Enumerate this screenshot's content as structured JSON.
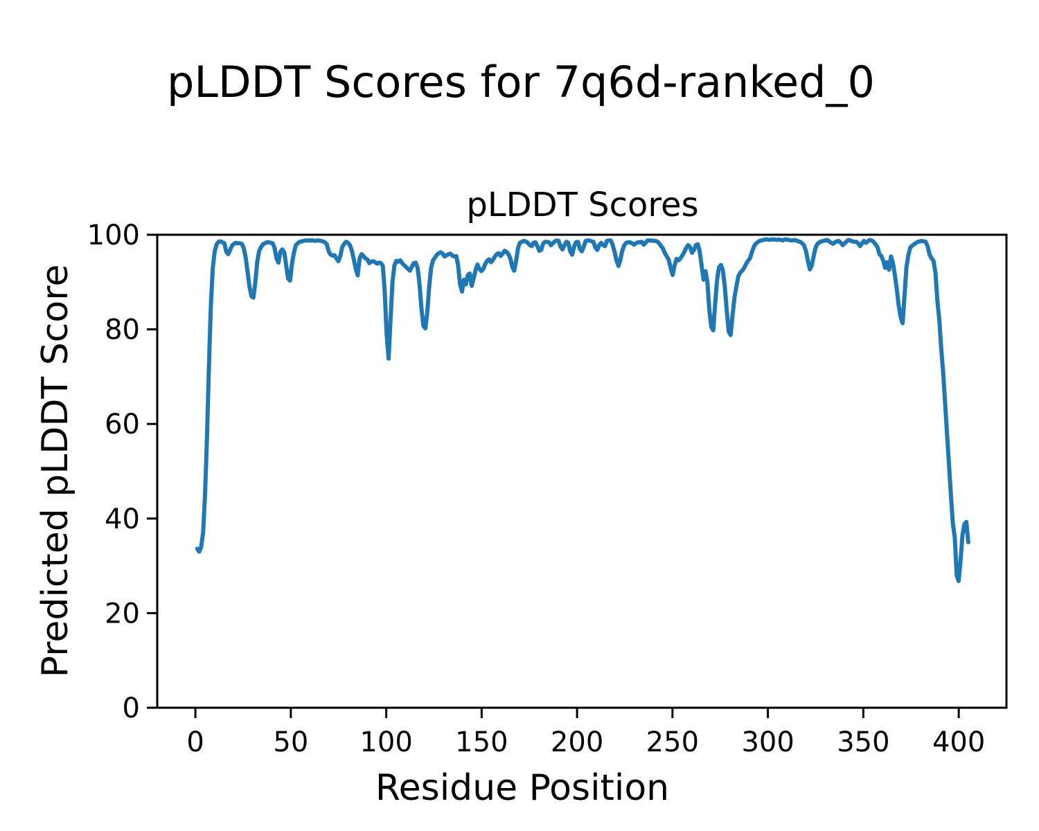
{
  "figure": {
    "suptitle": "pLDDT Scores for 7q6d-ranked_0",
    "background": "#ffffff"
  },
  "chart_data": {
    "type": "line",
    "title": "pLDDT Scores",
    "xlabel": "Residue Position",
    "ylabel": "Predicted pLDDT Score",
    "x_ticks": [
      0,
      50,
      100,
      150,
      200,
      250,
      300,
      350,
      400
    ],
    "y_ticks": [
      0,
      20,
      40,
      60,
      80,
      100
    ],
    "xlim": [
      -20,
      425
    ],
    "ylim": [
      0,
      100
    ],
    "grid": false,
    "legend": null,
    "line_color": "#1f77b4",
    "line_width": 6,
    "axis_color": "#000000",
    "series": [
      {
        "name": "pLDDT",
        "x_start": 1,
        "x_end": 405,
        "y": [
          33.6,
          33.0,
          34.0,
          37.0,
          45.0,
          57.0,
          72.0,
          85.0,
          93.0,
          96.5,
          98.0,
          98.5,
          98.6,
          98.4,
          98.2,
          96.4,
          95.9,
          96.8,
          97.7,
          98.1,
          98.3,
          98.2,
          98.2,
          98.1,
          97.2,
          95.3,
          92.2,
          89.0,
          87.0,
          86.7,
          89.8,
          94.2,
          96.6,
          97.4,
          98.0,
          98.2,
          98.4,
          98.4,
          98.3,
          98.2,
          97.2,
          95.0,
          94.1,
          96.4,
          96.9,
          96.3,
          93.5,
          90.7,
          90.3,
          93.8,
          96.2,
          97.8,
          98.2,
          98.5,
          98.6,
          98.7,
          98.8,
          98.8,
          98.8,
          98.8,
          98.8,
          98.7,
          98.8,
          98.8,
          98.7,
          98.6,
          98.4,
          98.0,
          96.5,
          95.8,
          95.6,
          95.7,
          95.0,
          94.4,
          95.5,
          97.4,
          98.1,
          98.5,
          98.3,
          97.8,
          96.6,
          94.8,
          92.8,
          91.4,
          95.0,
          95.9,
          95.5,
          95.0,
          94.8,
          94.0,
          94.3,
          94.4,
          94.2,
          93.9,
          94.1,
          94.0,
          93.4,
          88.0,
          79.0,
          73.8,
          82.0,
          90.0,
          93.5,
          94.5,
          94.3,
          94.6,
          94.0,
          93.6,
          93.2,
          92.8,
          92.4,
          93.2,
          94.0,
          94.1,
          93.0,
          89.5,
          84.5,
          80.8,
          80.2,
          83.5,
          89.0,
          93.0,
          94.6,
          95.2,
          95.8,
          96.1,
          96.3,
          96.0,
          95.4,
          95.7,
          95.9,
          96.0,
          95.6,
          95.4,
          95.5,
          93.5,
          89.5,
          88.0,
          90.5,
          89.5,
          91.5,
          91.8,
          89.2,
          90.8,
          92.5,
          93.7,
          92.8,
          92.3,
          92.8,
          93.8,
          94.5,
          94.8,
          94.2,
          94.7,
          95.4,
          95.9,
          96.1,
          95.5,
          96.0,
          96.6,
          96.4,
          95.9,
          95.0,
          93.2,
          92.4,
          94.5,
          97.2,
          98.3,
          98.5,
          98.7,
          98.6,
          98.3,
          97.8,
          97.6,
          98.3,
          98.4,
          97.6,
          96.6,
          96.8,
          98.2,
          98.5,
          98.5,
          98.4,
          97.8,
          98.2,
          98.6,
          98.8,
          98.7,
          97.5,
          96.9,
          97.8,
          98.5,
          98.3,
          96.5,
          95.8,
          97.5,
          98.4,
          98.5,
          97.0,
          96.5,
          97.5,
          98.7,
          98.8,
          98.8,
          98.6,
          98.5,
          97.3,
          96.8,
          97.8,
          98.3,
          97.8,
          97.6,
          98.7,
          98.8,
          98.8,
          97.8,
          96.3,
          94.5,
          93.4,
          94.8,
          96.8,
          97.8,
          98.3,
          98.4,
          98.4,
          98.2,
          97.9,
          98.2,
          98.4,
          98.4,
          98.5,
          97.9,
          98.3,
          98.8,
          98.8,
          98.8,
          98.7,
          98.7,
          98.6,
          98.2,
          97.6,
          97.1,
          96.1,
          95.4,
          94.7,
          92.9,
          91.5,
          93.5,
          94.9,
          94.6,
          95.0,
          95.6,
          96.3,
          97.2,
          97.8,
          97.4,
          96.2,
          96.8,
          97.8,
          98.0,
          96.5,
          93.5,
          90.5,
          92.3,
          90.0,
          84.0,
          80.5,
          79.8,
          85.5,
          90.5,
          93.1,
          93.6,
          92.5,
          89.0,
          84.0,
          79.5,
          78.8,
          83.0,
          86.8,
          89.0,
          91.2,
          92.0,
          92.4,
          93.0,
          93.8,
          94.5,
          95.0,
          96.3,
          97.5,
          98.1,
          98.4,
          98.7,
          98.8,
          98.9,
          99.0,
          99.0,
          98.9,
          99.0,
          99.0,
          99.0,
          98.9,
          99.0,
          98.9,
          98.8,
          99.0,
          99.0,
          98.9,
          98.8,
          98.8,
          98.9,
          98.8,
          98.6,
          98.5,
          98.2,
          97.8,
          96.5,
          94.5,
          92.7,
          93.5,
          95.5,
          97.3,
          98.1,
          98.4,
          98.6,
          98.7,
          98.8,
          98.9,
          98.6,
          98.3,
          98.1,
          98.4,
          98.6,
          98.7,
          98.3,
          97.8,
          98.2,
          98.6,
          98.9,
          98.8,
          98.6,
          98.5,
          98.5,
          98.2,
          97.6,
          98.2,
          98.7,
          98.3,
          98.6,
          98.9,
          98.8,
          98.5,
          98.0,
          97.4,
          95.9,
          95.5,
          94.5,
          93.0,
          94.2,
          92.6,
          95.4,
          94.0,
          91.5,
          88.5,
          85.0,
          82.5,
          81.3,
          87.0,
          93.1,
          95.7,
          97.3,
          97.7,
          98.0,
          98.3,
          98.5,
          98.6,
          98.7,
          98.6,
          98.5,
          97.5,
          95.8,
          95.0,
          94.5,
          92.0,
          86.0,
          82.0,
          76.0,
          71.0,
          64.5,
          58.0,
          51.5,
          45.0,
          39.0,
          36.0,
          28.0,
          26.8,
          31.0,
          36.5,
          38.8,
          39.3,
          35.0
        ]
      }
    ]
  }
}
